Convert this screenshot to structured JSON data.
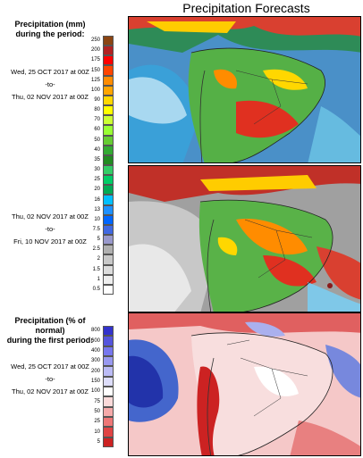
{
  "page": {
    "title": "Precipitation Forecasts"
  },
  "panels": [
    {
      "heading": "Precipitation (mm)\nduring the period:",
      "heading_lines": [
        "Precipitation (mm)",
        "during the period:"
      ],
      "start": "Wed, 25 OCT 2017 at 00Z",
      "sep": "-to-",
      "end": "Thu, 02 NOV 2017 at 00Z"
    },
    {
      "heading_lines": [],
      "start": "Thu, 02 NOV 2017 at 00Z",
      "sep": "-to-",
      "end": "Fri, 10 NOV 2017 at 00Z"
    },
    {
      "heading_lines": [
        "Precipitation (% of normal)",
        "during the first period:"
      ],
      "start": "Wed, 25 OCT 2017 at 00Z",
      "sep": "-to-",
      "end": "Thu, 02 NOV 2017 at 00Z"
    }
  ],
  "scale_mm": {
    "labels": [
      "250",
      "200",
      "175",
      "150",
      "125",
      "100",
      "90",
      "80",
      "70",
      "60",
      "50",
      "40",
      "35",
      "30",
      "25",
      "20",
      "16",
      "13",
      "10",
      "7.5",
      "5",
      "2.5",
      "2",
      "1.5",
      "1",
      "0.5"
    ],
    "colors": [
      "#8b4513",
      "#b22222",
      "#ff0000",
      "#ff4500",
      "#ff8c00",
      "#ffa500",
      "#ffd700",
      "#ffff00",
      "#ccff33",
      "#99ff33",
      "#66cc33",
      "#33aa33",
      "#228b22",
      "#33cc66",
      "#00cc66",
      "#00aa55",
      "#00bfff",
      "#1e90ff",
      "#0066ff",
      "#4169e1",
      "#9999cc",
      "#b0b0b0",
      "#c8c8c8",
      "#dcdcdc",
      "#eeeeee",
      "#ffffff"
    ]
  },
  "scale_pct": {
    "labels": [
      "800",
      "600",
      "400",
      "300",
      "200",
      "150",
      "100",
      "75",
      "50",
      "25",
      "10",
      "5"
    ],
    "colors": [
      "#3333cc",
      "#5555dd",
      "#7777ee",
      "#9999f0",
      "#bbbbf5",
      "#ddddfa",
      "#ffffff",
      "#fadada",
      "#f5aaaa",
      "#ee7777",
      "#e04444",
      "#cc2222"
    ]
  }
}
